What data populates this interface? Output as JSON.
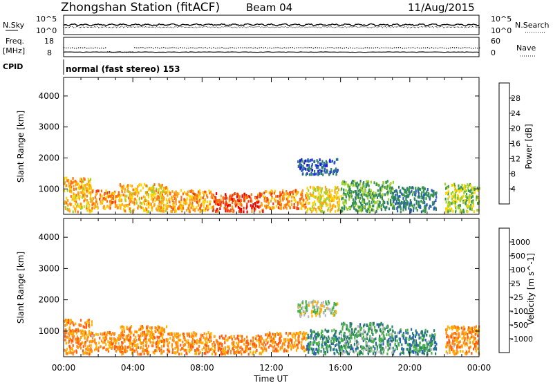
{
  "header": {
    "station": "Zhongshan Station (fitACF)",
    "beam": "Beam 04",
    "date": "11/Aug/2015"
  },
  "aux_panels": {
    "nsky_label": "N.Sky",
    "nsearch_label": "N.Search",
    "freq_label_line1": "Freq.",
    "freq_label_line2": "[MHz]",
    "nave_label": "Nave",
    "cpid_label": "CPID",
    "cpid_value": "normal (fast stereo) 153",
    "noise_ticks": [
      "10^5",
      "10^0"
    ],
    "noise_right_ticks": [
      "10^5",
      "10^0"
    ],
    "freq_ticks": [
      "18",
      "8"
    ],
    "nave_ticks": [
      "60",
      "0"
    ]
  },
  "colors": {
    "frame": "#000000",
    "ground_scatter": "#aaaaaa"
  },
  "chart_data": [
    {
      "type": "heatmap",
      "title": "",
      "xlabel": "Time UT",
      "ylabel": "Slant Range [km]",
      "x_ticks": [
        "00:00",
        "04:00",
        "08:00",
        "12:00",
        "16:00",
        "20:00",
        "00:00"
      ],
      "y_ticks": [
        1000,
        2000,
        3000,
        4000
      ],
      "ylim": [
        180,
        4600
      ],
      "colorbar": {
        "label": "Power [dB]",
        "ticks": [
          "4",
          "8",
          "12",
          "16",
          "20",
          "24",
          "28"
        ],
        "colors": [
          "#1515e0",
          "#2c5fb6",
          "#2d7e6b",
          "#3a9a4a",
          "#9fd12c",
          "#ffd400",
          "#ffa41a",
          "#ff6e0a",
          "#f03a0a",
          "#ee0000"
        ]
      },
      "regions": [
        {
          "t0": 0.0,
          "t1": 1.6,
          "r0": 300,
          "r1": 1400,
          "level": 0.62
        },
        {
          "t0": 1.6,
          "t1": 3.2,
          "r0": 400,
          "r1": 1000,
          "level": 0.7
        },
        {
          "t0": 3.2,
          "t1": 6.0,
          "r0": 300,
          "r1": 1200,
          "level": 0.6
        },
        {
          "t0": 6.0,
          "t1": 8.5,
          "r0": 300,
          "r1": 1000,
          "level": 0.66
        },
        {
          "t0": 8.5,
          "t1": 11.5,
          "r0": 300,
          "r1": 900,
          "level": 0.82
        },
        {
          "t0": 11.5,
          "t1": 14.0,
          "r0": 400,
          "r1": 1000,
          "level": 0.7
        },
        {
          "t0": 14.0,
          "t1": 16.0,
          "r0": 300,
          "r1": 1100,
          "level": 0.55
        },
        {
          "t0": 13.5,
          "t1": 15.8,
          "r0": 1500,
          "r1": 2000,
          "level": 0.15
        },
        {
          "t0": 16.0,
          "t1": 19.0,
          "r0": 300,
          "r1": 1300,
          "level": 0.35
        },
        {
          "t0": 19.0,
          "t1": 21.5,
          "r0": 300,
          "r1": 1100,
          "level": 0.25
        },
        {
          "t0": 22.0,
          "t1": 24.0,
          "r0": 300,
          "r1": 1200,
          "level": 0.45
        }
      ]
    },
    {
      "type": "heatmap",
      "title": "",
      "xlabel": "Time UT",
      "ylabel": "Slant Range [km]",
      "x_ticks": [
        "00:00",
        "04:00",
        "08:00",
        "12:00",
        "16:00",
        "20:00",
        "00:00"
      ],
      "y_ticks": [
        1000,
        2000,
        3000,
        4000
      ],
      "ylim": [
        180,
        4600
      ],
      "colorbar": {
        "label": "Velocity [m s^-1]",
        "ticks": [
          "1000",
          "500",
          "100",
          "25",
          "-25",
          "-100",
          "-500",
          "-1000"
        ],
        "colors": [
          "#1a3aa8",
          "#2a60b8",
          "#2b7c68",
          "#48b24a",
          "#b8b8b8",
          "#ffb000",
          "#ff8a1a",
          "#ff5a10",
          "#e00000"
        ]
      },
      "regions": [
        {
          "t0": 0.0,
          "t1": 1.6,
          "r0": 300,
          "r1": 1400,
          "level": 0.72
        },
        {
          "t0": 1.6,
          "t1": 3.2,
          "r0": 400,
          "r1": 1000,
          "level": 0.7
        },
        {
          "t0": 3.2,
          "t1": 6.0,
          "r0": 300,
          "r1": 1200,
          "level": 0.72
        },
        {
          "t0": 6.0,
          "t1": 8.5,
          "r0": 300,
          "r1": 1000,
          "level": 0.7
        },
        {
          "t0": 8.5,
          "t1": 11.5,
          "r0": 300,
          "r1": 900,
          "level": 0.72
        },
        {
          "t0": 11.5,
          "t1": 14.0,
          "r0": 400,
          "r1": 1000,
          "level": 0.7
        },
        {
          "t0": 14.0,
          "t1": 16.0,
          "r0": 300,
          "r1": 1100,
          "level": 0.3
        },
        {
          "t0": 13.5,
          "t1": 15.8,
          "r0": 1500,
          "r1": 2000,
          "level": 0.5
        },
        {
          "t0": 16.0,
          "t1": 19.0,
          "r0": 300,
          "r1": 1300,
          "level": 0.35
        },
        {
          "t0": 19.0,
          "t1": 21.5,
          "r0": 300,
          "r1": 1100,
          "level": 0.3
        },
        {
          "t0": 22.0,
          "t1": 24.0,
          "r0": 300,
          "r1": 1200,
          "level": 0.7
        }
      ]
    }
  ]
}
